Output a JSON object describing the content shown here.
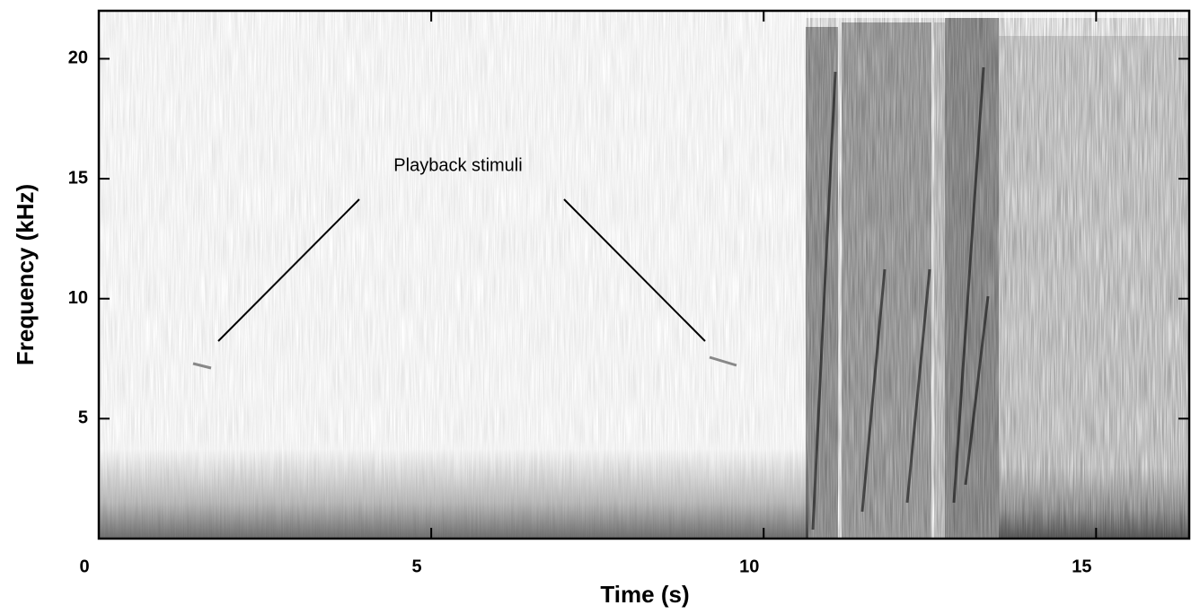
{
  "chart_data": {
    "type": "spectrogram",
    "xlabel": "Time (s)",
    "ylabel": "Frequency (kHz)",
    "xlim": [
      0,
      16.4
    ],
    "ylim": [
      0,
      22
    ],
    "xticks": [
      0,
      5,
      10,
      15
    ],
    "yticks": [
      5,
      10,
      15,
      20
    ],
    "annotation": "Playback stimuli"
  }
}
